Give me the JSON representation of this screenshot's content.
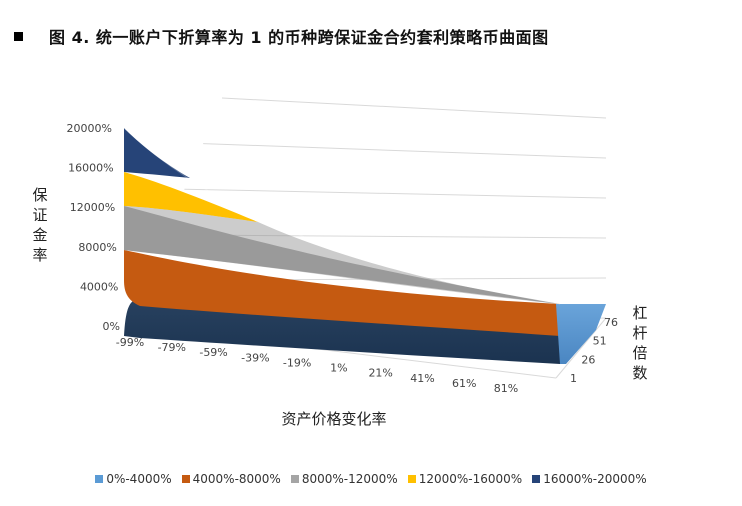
{
  "title": "图 4. 统一账户下折算率为 1 的币种跨保证金合约套利策略币曲面图",
  "chart_data": {
    "type": "surface",
    "title": "图 4. 统一账户下折算率为 1 的币种跨保证金合约套利策略币曲面图",
    "zlabel": "保证金率",
    "xlabel": "资产价格变化率",
    "ylabel": "杠杆倍数",
    "z_ticks": [
      "0%",
      "4000%",
      "8000%",
      "12000%",
      "16000%",
      "20000%"
    ],
    "x_ticks": [
      "-99%",
      "-79%",
      "-59%",
      "-39%",
      "-19%",
      "1%",
      "21%",
      "41%",
      "61%",
      "81%"
    ],
    "y_ticks": [
      "1",
      "26",
      "51",
      "76"
    ],
    "zlim": [
      0,
      20000
    ],
    "legend": [
      {
        "label": "0%-4000%",
        "color": "#5b9bd5"
      },
      {
        "label": "4000%-8000%",
        "color": "#c55a11"
      },
      {
        "label": "8000%-12000%",
        "color": "#a5a5a5"
      },
      {
        "label": "12000%-16000%",
        "color": "#ffc000"
      },
      {
        "label": "16000%-20000%",
        "color": "#264478"
      }
    ],
    "surface_samples": {
      "x": [
        -99,
        -79,
        -59,
        -39,
        -19,
        1,
        21,
        41,
        61,
        81
      ],
      "z_back_edge": [
        20000,
        15000,
        11500,
        9000,
        7400,
        6200,
        5300,
        4600,
        4100,
        3700
      ],
      "z_front_edge": [
        2800,
        2200,
        1800,
        1500,
        1300,
        1100,
        1000,
        900,
        800,
        700
      ]
    }
  }
}
